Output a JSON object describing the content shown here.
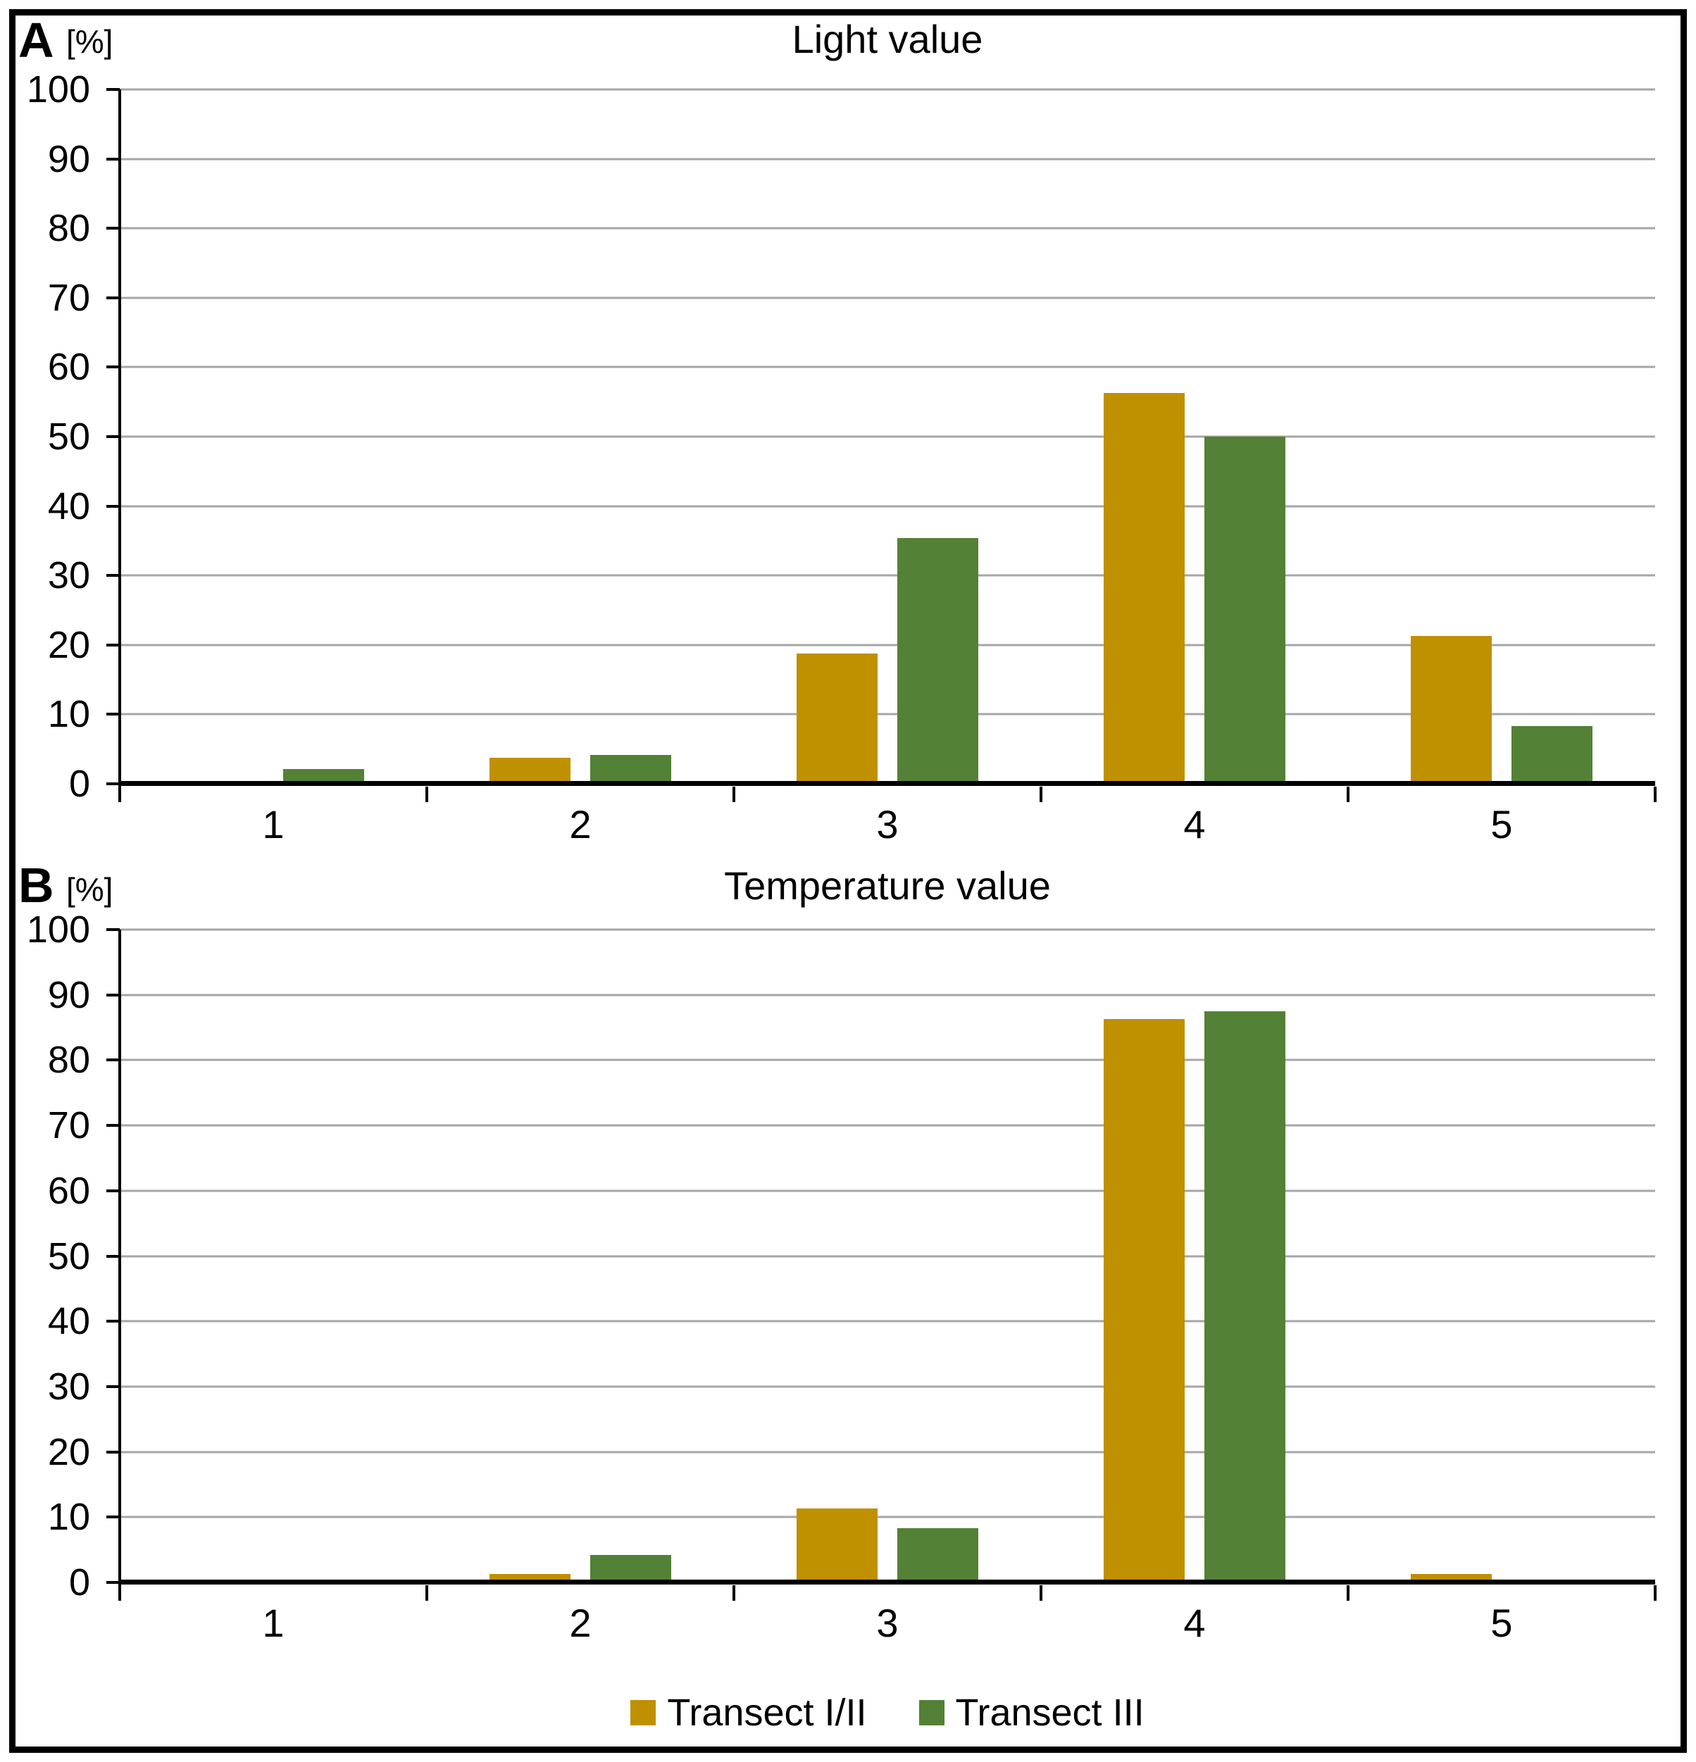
{
  "figure": {
    "unit_label": "[%]",
    "legend": {
      "position": "bottom",
      "items": [
        {
          "label": "Transect I/II",
          "color": "#BF9000"
        },
        {
          "label": "Transect III",
          "color": "#538135"
        }
      ]
    }
  },
  "chart_data": [
    {
      "type": "bar",
      "panel": "A",
      "unit": "[%]",
      "title": "Light value",
      "categories": [
        "1",
        "2",
        "3",
        "4",
        "5"
      ],
      "series": [
        {
          "name": "Transect I/II",
          "color": "#BF9000",
          "values": [
            0,
            3.8,
            18.8,
            56.3,
            21.3
          ]
        },
        {
          "name": "Transect III",
          "color": "#538135",
          "values": [
            2.1,
            4.2,
            35.4,
            50.0,
            8.3
          ]
        }
      ],
      "xlabel": "",
      "ylabel": "[%]",
      "ylim": [
        0,
        100
      ],
      "ytick_step": 10,
      "grid": true,
      "legend_position": "bottom-shared"
    },
    {
      "type": "bar",
      "panel": "B",
      "unit": "[%]",
      "title": "Temperature value",
      "categories": [
        "1",
        "2",
        "3",
        "4",
        "5"
      ],
      "series": [
        {
          "name": "Transect I/II",
          "color": "#BF9000",
          "values": [
            0,
            1.3,
            11.3,
            86.3,
            1.3
          ]
        },
        {
          "name": "Transect III",
          "color": "#538135",
          "values": [
            0,
            4.2,
            8.3,
            87.5,
            0
          ]
        }
      ],
      "xlabel": "",
      "ylabel": "[%]",
      "ylim": [
        0,
        100
      ],
      "ytick_step": 10,
      "grid": true,
      "legend_position": "bottom-shared"
    }
  ]
}
